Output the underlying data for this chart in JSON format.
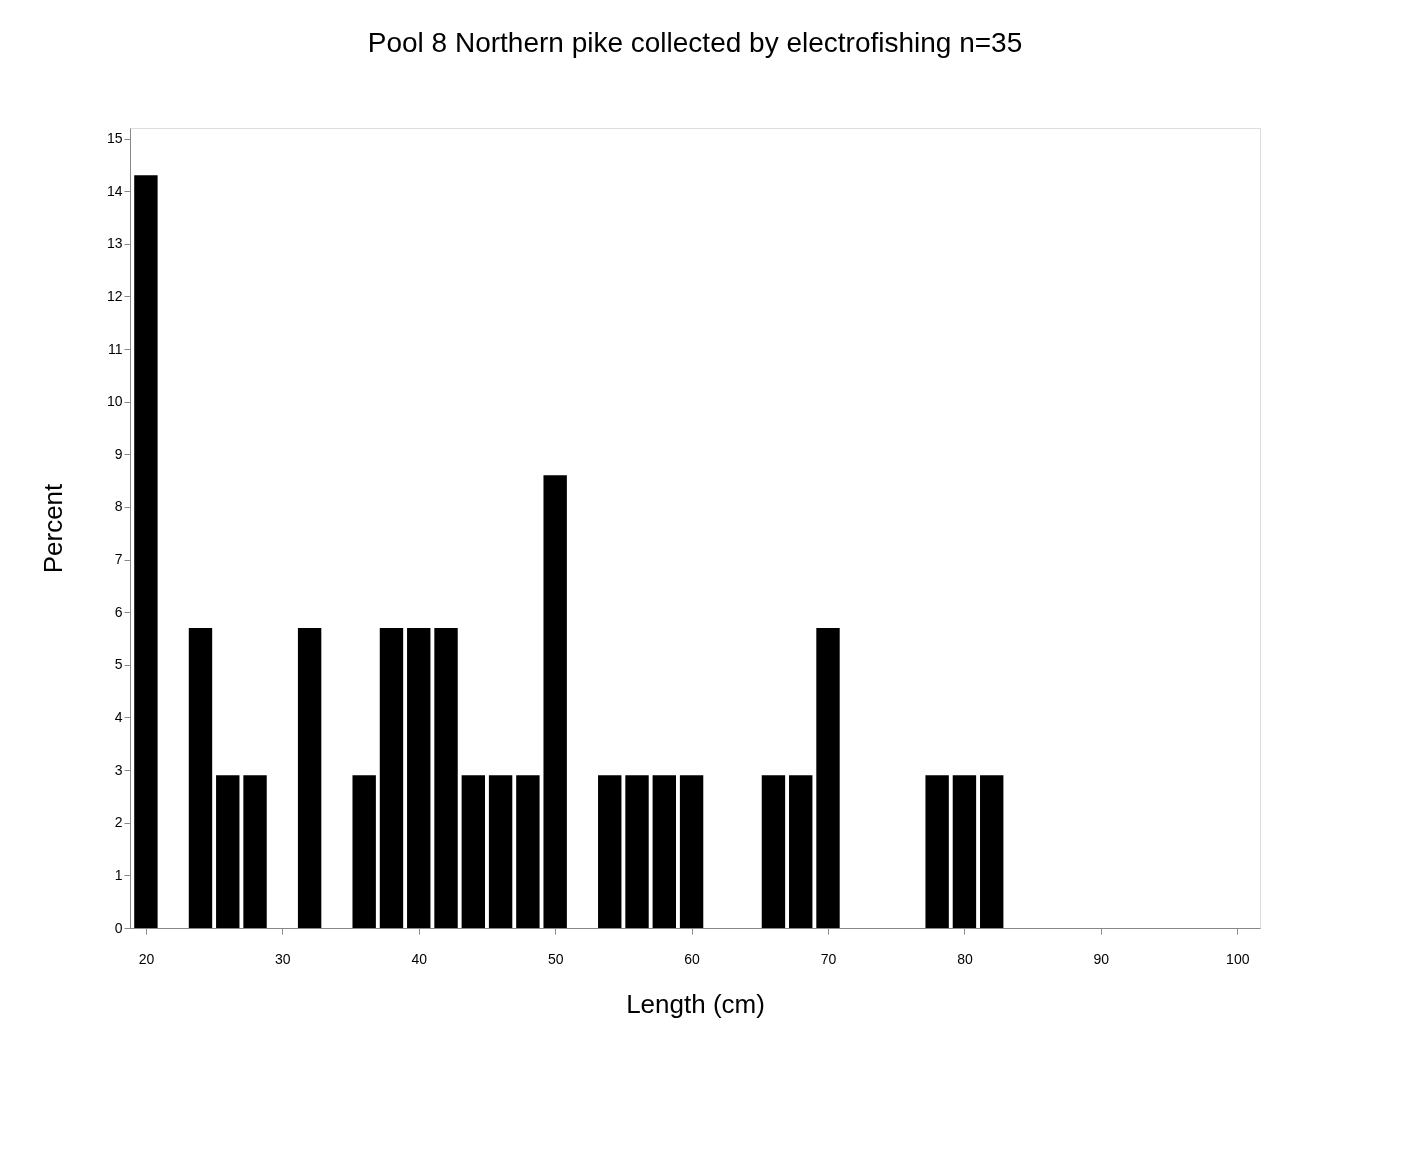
{
  "chart_data": {
    "type": "bar",
    "title": "Pool 8 Northern pike collected by electrofishing n=35",
    "xlabel": "Length (cm)",
    "ylabel": "Percent",
    "x": [
      20,
      24,
      26,
      28,
      32,
      36,
      38,
      40,
      42,
      44,
      46,
      48,
      50,
      54,
      56,
      58,
      60,
      66,
      68,
      70,
      78,
      80,
      82
    ],
    "values": [
      14.3,
      5.7,
      2.9,
      2.9,
      5.7,
      2.9,
      5.7,
      5.7,
      5.7,
      2.9,
      2.9,
      2.9,
      8.6,
      2.9,
      2.9,
      2.9,
      2.9,
      2.9,
      2.9,
      5.7,
      2.9,
      2.9,
      2.9
    ],
    "color": "#000000",
    "xlim": [
      19.2,
      101.3
    ],
    "xticks": [
      20,
      30,
      40,
      50,
      60,
      70,
      80,
      90,
      100
    ],
    "ylim": [
      0,
      15.2
    ],
    "yticks": [
      0,
      1,
      2,
      3,
      4,
      5,
      6,
      7,
      8,
      9,
      10,
      11,
      12,
      13,
      14,
      15
    ],
    "grid": false
  }
}
